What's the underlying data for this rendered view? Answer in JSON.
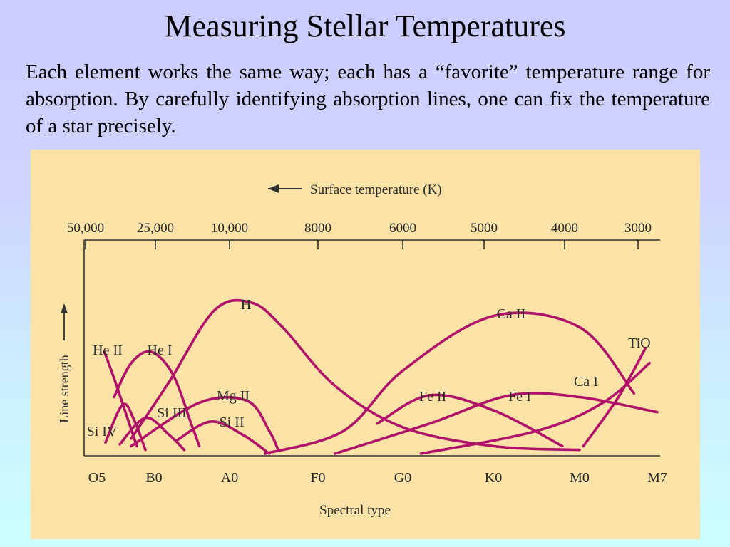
{
  "slide": {
    "title": "Measuring Stellar Temperatures",
    "body": "Each element works the same way; each has a “favorite” temperature range for absorption.  By carefully identifying absorption lines, one can fix the temperature of a star precisely."
  },
  "colors": {
    "curve": "#b0126a",
    "figure_background": "#fbe2a7",
    "axis": "#333333"
  },
  "chart_data": {
    "type": "line",
    "top_axis_label": "Surface temperature (K)",
    "top_axis_arrow": "left",
    "top_ticks": [
      "50,000",
      "25,000",
      "10,000",
      "8000",
      "6000",
      "5000",
      "4000",
      "3000"
    ],
    "xlabel": "Spectral type",
    "ylabel": "Line strength",
    "ylabel_arrow": "up",
    "categories": [
      "O5",
      "B0",
      "A0",
      "F0",
      "G0",
      "K0",
      "M0",
      "M7"
    ],
    "category_index": {
      "O5": 0,
      "B0": 1,
      "A0": 2,
      "F0": 3,
      "G0": 4,
      "K0": 5,
      "M0": 6,
      "M7": 7
    },
    "ylim": [
      0,
      100
    ],
    "grid": false,
    "note": "x is the position along the spectral-type axis (O5 = 0 … M7 = 7); y is relative line strength (0–100).",
    "series": [
      {
        "name": "He II",
        "points": [
          [
            0.13,
            54
          ],
          [
            0.3,
            40
          ],
          [
            0.5,
            22
          ],
          [
            0.7,
            4
          ]
        ]
      },
      {
        "name": "He I",
        "points": [
          [
            0.3,
            30
          ],
          [
            0.6,
            48
          ],
          [
            0.95,
            54
          ],
          [
            1.25,
            42
          ],
          [
            1.5,
            15
          ],
          [
            1.6,
            4
          ]
        ]
      },
      {
        "name": "H",
        "points": [
          [
            0.6,
            8
          ],
          [
            1.2,
            38
          ],
          [
            1.8,
            76
          ],
          [
            2.25,
            80
          ],
          [
            2.6,
            67
          ],
          [
            3.2,
            36
          ],
          [
            4.0,
            14
          ],
          [
            5.0,
            4
          ],
          [
            6.0,
            2
          ]
        ]
      },
      {
        "name": "Si IV",
        "points": [
          [
            0.15,
            6
          ],
          [
            0.45,
            26
          ],
          [
            0.65,
            18
          ],
          [
            0.85,
            2
          ]
        ]
      },
      {
        "name": "Si III",
        "points": [
          [
            0.4,
            5
          ],
          [
            0.85,
            19
          ],
          [
            1.2,
            10
          ],
          [
            1.4,
            2
          ]
        ]
      },
      {
        "name": "Mg II",
        "points": [
          [
            0.6,
            4
          ],
          [
            1.6,
            27
          ],
          [
            2.2,
            28
          ],
          [
            2.45,
            12
          ],
          [
            2.55,
            2
          ]
        ]
      },
      {
        "name": "Si II",
        "points": [
          [
            1.3,
            7
          ],
          [
            1.75,
            17
          ],
          [
            2.15,
            10
          ],
          [
            2.45,
            0
          ]
        ]
      },
      {
        "name": "Ca II",
        "points": [
          [
            2.4,
            0
          ],
          [
            3.3,
            12
          ],
          [
            4.0,
            44
          ],
          [
            5.0,
            73
          ],
          [
            6.0,
            67
          ],
          [
            6.7,
            32
          ]
        ]
      },
      {
        "name": "Fe II",
        "points": [
          [
            3.7,
            16
          ],
          [
            4.3,
            31
          ],
          [
            5.0,
            23
          ],
          [
            5.8,
            4
          ]
        ]
      },
      {
        "name": "Fe I",
        "points": [
          [
            3.2,
            0
          ],
          [
            4.3,
            16
          ],
          [
            5.2,
            31
          ],
          [
            6.0,
            30
          ],
          [
            7.0,
            22
          ]
        ]
      },
      {
        "name": "Ca I",
        "points": [
          [
            4.2,
            0
          ],
          [
            5.5,
            12
          ],
          [
            6.3,
            27
          ],
          [
            6.9,
            48
          ]
        ]
      },
      {
        "name": "TiO",
        "points": [
          [
            6.05,
            4
          ],
          [
            6.5,
            30
          ],
          [
            6.85,
            56
          ]
        ]
      }
    ]
  }
}
